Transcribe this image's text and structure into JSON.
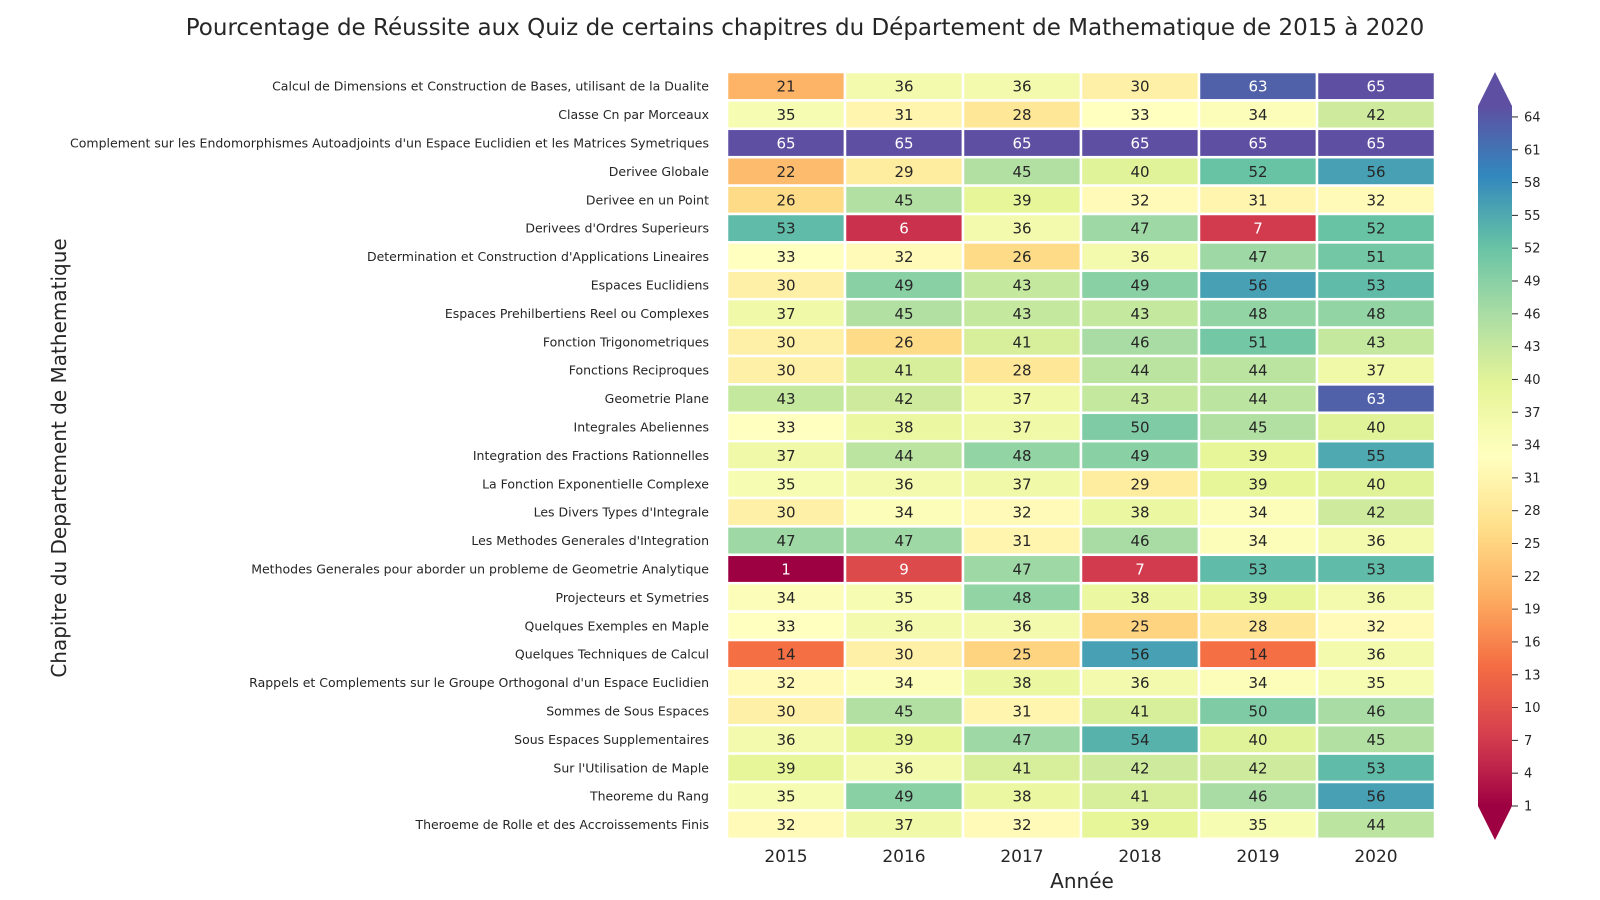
{
  "chart_data": {
    "type": "heatmap",
    "title": "Pourcentage de Réussite aux Quiz de certains chapitres du Département de Mathematique de 2015 à 2020",
    "xlabel": "Année",
    "ylabel": "Chapitre du Departement de Mathematique",
    "columns": [
      "2015",
      "2016",
      "2017",
      "2018",
      "2019",
      "2020"
    ],
    "rows": [
      "Calcul de Dimensions et Construction de Bases, utilisant de la Dualite",
      "Classe Cn par Morceaux",
      "Complement sur les Endomorphismes Autoadjoints d'un Espace Euclidien et les Matrices Symetriques",
      "Derivee Globale",
      "Derivee en un Point",
      "Derivees d'Ordres Superieurs",
      "Determination et Construction d'Applications Lineaires",
      "Espaces Euclidiens",
      "Espaces Prehilbertiens Reel ou Complexes",
      "Fonction Trigonometriques",
      "Fonctions Reciproques",
      "Geometrie Plane",
      "Integrales Abeliennes",
      "Integration des Fractions Rationnelles",
      "La Fonction Exponentielle Complexe",
      "Les Divers Types d'Integrale",
      "Les Methodes Generales d'Integration",
      "Methodes Generales pour aborder un probleme de Geometrie Analytique",
      "Projecteurs et Symetries",
      "Quelques Exemples en Maple",
      "Quelques Techniques de Calcul",
      "Rappels et Complements sur le Groupe Orthogonal d'un Espace Euclidien",
      "Sommes de Sous Espaces",
      "Sous Espaces Supplementaires",
      "Sur l'Utilisation de Maple",
      "Theoreme du Rang",
      "Theroeme de Rolle et des Accroissements Finis"
    ],
    "values": [
      [
        21,
        36,
        36,
        30,
        63,
        65
      ],
      [
        35,
        31,
        28,
        33,
        34,
        42
      ],
      [
        65,
        65,
        65,
        65,
        65,
        65
      ],
      [
        22,
        29,
        45,
        40,
        52,
        56
      ],
      [
        26,
        45,
        39,
        32,
        31,
        32
      ],
      [
        53,
        6,
        36,
        47,
        7,
        52
      ],
      [
        33,
        32,
        26,
        36,
        47,
        51
      ],
      [
        30,
        49,
        43,
        49,
        56,
        53
      ],
      [
        37,
        45,
        43,
        43,
        48,
        48
      ],
      [
        30,
        26,
        41,
        46,
        51,
        43
      ],
      [
        30,
        41,
        28,
        44,
        44,
        37
      ],
      [
        43,
        42,
        37,
        43,
        44,
        63
      ],
      [
        33,
        38,
        37,
        50,
        45,
        40
      ],
      [
        37,
        44,
        48,
        49,
        39,
        55
      ],
      [
        35,
        36,
        37,
        29,
        39,
        40
      ],
      [
        30,
        34,
        32,
        38,
        34,
        42
      ],
      [
        47,
        47,
        31,
        46,
        34,
        36
      ],
      [
        1,
        9,
        47,
        7,
        53,
        53
      ],
      [
        34,
        35,
        48,
        38,
        39,
        36
      ],
      [
        33,
        36,
        36,
        25,
        28,
        32
      ],
      [
        14,
        30,
        25,
        56,
        14,
        36
      ],
      [
        32,
        34,
        38,
        36,
        34,
        35
      ],
      [
        30,
        45,
        31,
        41,
        50,
        46
      ],
      [
        36,
        39,
        47,
        54,
        40,
        45
      ],
      [
        39,
        36,
        41,
        42,
        42,
        53
      ],
      [
        35,
        49,
        38,
        41,
        46,
        56
      ],
      [
        32,
        37,
        32,
        39,
        35,
        44
      ]
    ],
    "colormap": "Spectral",
    "vmin": 1,
    "vmax": 65,
    "colorbar_ticks": [
      1,
      4,
      7,
      10,
      13,
      16,
      19,
      22,
      25,
      28,
      31,
      34,
      37,
      40,
      43,
      46,
      49,
      52,
      55,
      58,
      61,
      64
    ],
    "colorbar_extend": "both",
    "annotations": true
  }
}
